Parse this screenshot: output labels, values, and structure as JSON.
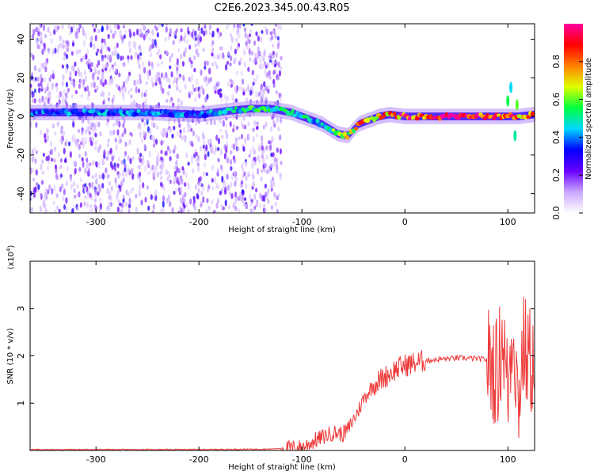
{
  "title": "C2E6.2023.345.00.43.R05",
  "chart_data": [
    {
      "type": "heatmap",
      "title": "C2E6.2023.345.00.43.R05",
      "xlabel": "Height of straight line (km)",
      "ylabel": "Frequency (Hz)",
      "xlim": [
        -364,
        126
      ],
      "ylim": [
        -50,
        48
      ],
      "x_ticks": [
        -300,
        -200,
        -100,
        0,
        100
      ],
      "y_ticks": [
        -40,
        -20,
        0,
        20,
        40
      ],
      "colorbar": {
        "label": "Normalized spectral amplitude",
        "range": [
          0.0,
          1.0
        ],
        "ticks": [
          "0.0",
          "0.2",
          "0.4",
          "0.6",
          "0.8"
        ],
        "tick_values": [
          0.0,
          0.2,
          0.4,
          0.6,
          0.8
        ],
        "colormap": [
          "#ffffff",
          "#c9a6ff",
          "#6a00ff",
          "#0000ff",
          "#00d8ff",
          "#00ff40",
          "#e0ff00",
          "#ff8000",
          "#ff0000",
          "#ff00a0"
        ]
      },
      "ridge": {
        "x": [
          -364,
          -300,
          -250,
          -200,
          -170,
          -150,
          -130,
          -110,
          -95,
          -80,
          -65,
          -55,
          -45,
          -35,
          -25,
          -15,
          0,
          20,
          50,
          80,
          95,
          100,
          105,
          110,
          126
        ],
        "freq": [
          2,
          2,
          2,
          1,
          3,
          4,
          4,
          2,
          -1,
          -4,
          -9,
          -10,
          -4,
          -2,
          0,
          1,
          0,
          0,
          0,
          0,
          0,
          0,
          0,
          0,
          1
        ],
        "amp": [
          0.4,
          0.42,
          0.45,
          0.4,
          0.5,
          0.55,
          0.5,
          0.55,
          0.48,
          0.5,
          0.62,
          0.72,
          0.78,
          0.82,
          0.85,
          0.88,
          0.9,
          0.95,
          0.95,
          0.95,
          0.92,
          0.9,
          0.85,
          0.8,
          0.8
        ]
      },
      "noise_extent_x": [
        -364,
        -120
      ]
    },
    {
      "type": "line",
      "xlabel": "Height of straight line (km)",
      "ylabel": "SNR (10 * v/v)",
      "y_multiplier": "(x10",
      "y_multiplier_exp": "4",
      "xlim": [
        -364,
        126
      ],
      "ylim": [
        0,
        4
      ],
      "x_ticks": [
        -300,
        -200,
        -100,
        0,
        100
      ],
      "y_ticks": [
        1,
        2,
        3
      ],
      "color": "#ee3b3b",
      "series": [
        {
          "x": [
            -364,
            -300,
            -200,
            -130,
            -100,
            -90,
            -80,
            -70,
            -60,
            -55,
            -50,
            -45,
            -40,
            -35,
            -30,
            -20,
            -10,
            0,
            10,
            20,
            30,
            40,
            50,
            60,
            70,
            80,
            85,
            90,
            95,
            100,
            105,
            110,
            115,
            120,
            126
          ],
          "y": [
            0.01,
            0.01,
            0.01,
            0.02,
            0.06,
            0.18,
            0.28,
            0.38,
            0.35,
            0.45,
            0.65,
            0.85,
            1.1,
            1.25,
            1.4,
            1.55,
            1.7,
            1.8,
            1.85,
            1.9,
            1.92,
            1.94,
            1.95,
            1.95,
            1.94,
            1.92,
            1.8,
            1.6,
            2.5,
            1.2,
            2.8,
            1.0,
            2.2,
            1.9,
            1.88
          ]
        }
      ]
    }
  ]
}
